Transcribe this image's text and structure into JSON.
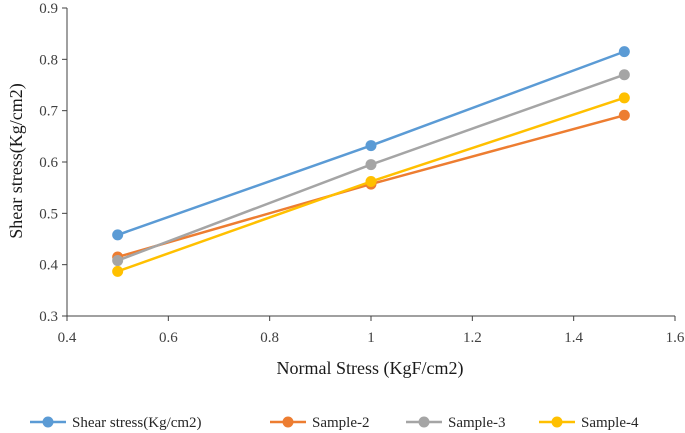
{
  "chart_data": {
    "type": "line",
    "title": "",
    "xlabel": "Normal Stress (KgF/cm2)",
    "ylabel": "Shear stress(Kg/cm2)",
    "xlim": [
      0.4,
      1.6
    ],
    "ylim": [
      0.3,
      0.9
    ],
    "xticks": [
      "0.4",
      "0.6",
      "0.8",
      "1",
      "1.2",
      "1.4",
      "1.6"
    ],
    "yticks": [
      "0.3",
      "0.4",
      "0.5",
      "0.6",
      "0.7",
      "0.8",
      "0.9"
    ],
    "xtick_values": [
      0.4,
      0.6,
      0.8,
      1.0,
      1.2,
      1.4,
      1.6
    ],
    "ytick_values": [
      0.3,
      0.4,
      0.5,
      0.6,
      0.7,
      0.8,
      0.9
    ],
    "x": [
      0.5,
      1.0,
      1.5
    ],
    "legend_position": "bottom",
    "series": [
      {
        "name": "Shear stress(Kg/cm2)",
        "color": "#5b9bd5",
        "values": [
          0.458,
          0.632,
          0.815
        ]
      },
      {
        "name": "Sample-2",
        "color": "#ed7d31",
        "values": [
          0.415,
          0.557,
          0.691
        ]
      },
      {
        "name": "Sample-3",
        "color": "#a5a5a5",
        "values": [
          0.408,
          0.595,
          0.77
        ]
      },
      {
        "name": "Sample-4",
        "color": "#ffc000",
        "values": [
          0.387,
          0.562,
          0.725
        ]
      }
    ]
  }
}
